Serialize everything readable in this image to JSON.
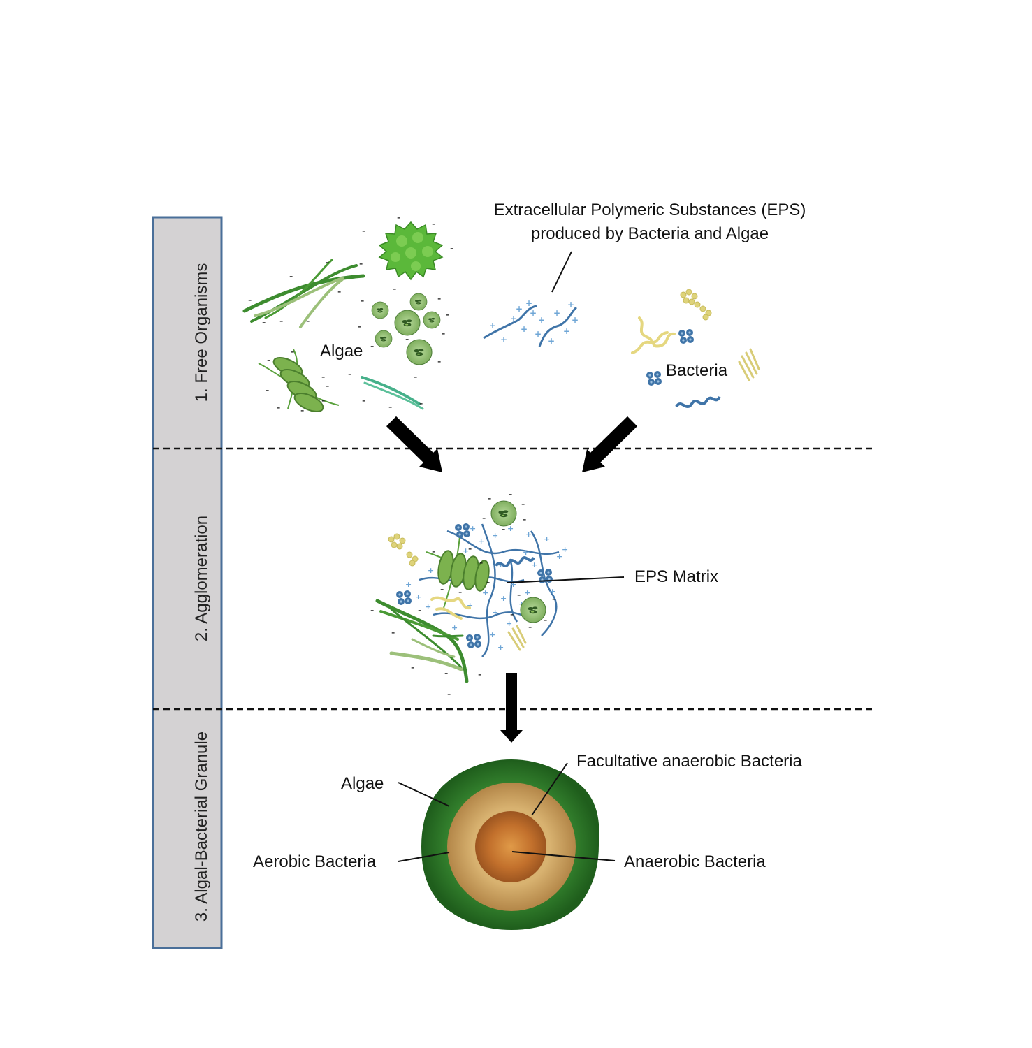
{
  "stages": [
    {
      "label": "1. Free Organisms"
    },
    {
      "label": "2. Agglomeration"
    },
    {
      "label": "3. Algal-Bacterial Granule"
    }
  ],
  "free_organisms": {
    "algae_label": "Algae",
    "eps_label_line1": "Extracellular Polymeric Substances (EPS)",
    "eps_label_line2": "produced by Bacteria and Algae",
    "bacteria_label": "Bacteria"
  },
  "agglomeration": {
    "eps_matrix_label": "EPS Matrix"
  },
  "granule": {
    "algae_label": "Algae",
    "aerobic_label": "Aerobic Bacteria",
    "facultative_label": "Facultative anaerobic Bacteria",
    "anaerobic_label": "Anaerobic Bacteria"
  },
  "colors": {
    "stage_panel": "#d4d2d3",
    "stage_border": "#4a6f99",
    "algae_dark": "#2e7d2b",
    "algae_light": "#8cbf5a",
    "eps_blue": "#3f74a8",
    "eps_dot": "#6fa6d6",
    "bacteria_yellow": "#e8df90",
    "granule_outer": "#2f7a2a",
    "granule_middle": "#c8a062",
    "granule_core": "#b8662a"
  }
}
